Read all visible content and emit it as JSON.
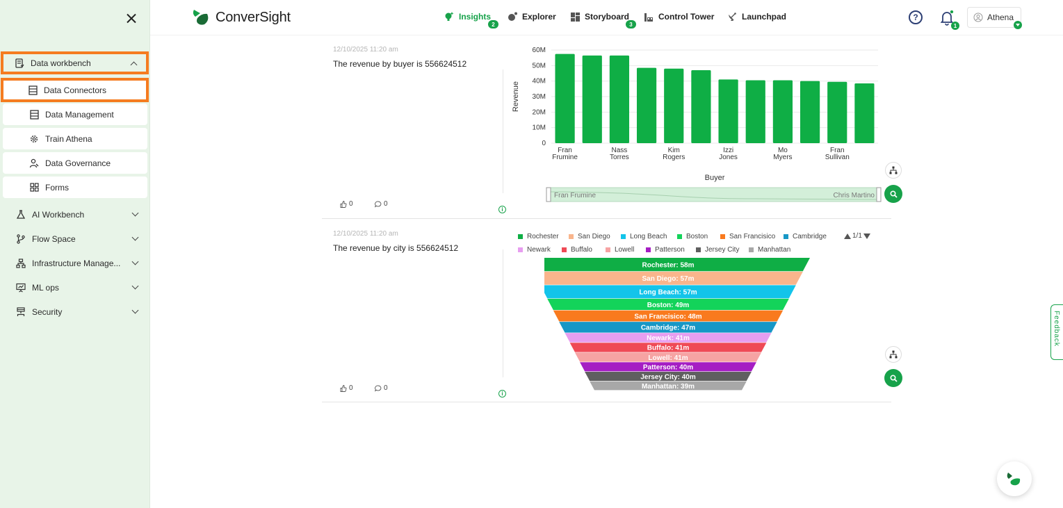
{
  "brand": {
    "name": "ConverSight"
  },
  "sidebar": {
    "groups": [
      {
        "label": "Data workbench",
        "expanded": true
      },
      {
        "label": "AI Workbench"
      },
      {
        "label": "Flow Space"
      },
      {
        "label": "Infrastructure Manage..."
      },
      {
        "label": "ML ops"
      },
      {
        "label": "Security"
      }
    ],
    "data_workbench_items": [
      {
        "label": "Data Connectors"
      },
      {
        "label": "Data Management"
      },
      {
        "label": "Train Athena"
      },
      {
        "label": "Data Governance"
      },
      {
        "label": "Forms"
      }
    ]
  },
  "topnav": {
    "items": [
      {
        "label": "Insights",
        "badge": "2"
      },
      {
        "label": "Explorer"
      },
      {
        "label": "Storyboard",
        "badge": "3"
      },
      {
        "label": "Control Tower"
      },
      {
        "label": "Launchpad"
      }
    ],
    "help": "?",
    "notifications_badge": "1",
    "user_name": "Athena"
  },
  "cards": [
    {
      "timestamp": "12/10/2025 11:20 am",
      "title": "The revenue by buyer is 556624512",
      "likes": "0",
      "comments": "0",
      "info": "i"
    },
    {
      "timestamp": "12/10/2025 11:20 am",
      "title": "The revenue by city is 556624512",
      "likes": "0",
      "comments": "0",
      "info": "i"
    }
  ],
  "chart_data": [
    {
      "type": "bar",
      "xlabel": "Buyer",
      "ylabel": "Revenue",
      "ylim": [
        0,
        60000000
      ],
      "y_ticks": [
        "0",
        "10M",
        "20M",
        "30M",
        "40M",
        "50M",
        "60M"
      ],
      "bar_color": "#0fae45",
      "categories": [
        "Fran Frumine",
        "",
        "Nass Torres",
        "",
        "Kim Rogers",
        "",
        "Izzi Jones",
        "",
        "Mo Myers",
        "",
        "Fran Sullivan",
        ""
      ],
      "values": [
        57500000,
        56500000,
        56500000,
        48500000,
        48000000,
        47000000,
        41000000,
        40500000,
        40500000,
        40000000,
        39500000,
        38500000
      ],
      "zoom_start_label": "Fran Frumine",
      "zoom_end_label": "Chris Martino"
    },
    {
      "type": "funnel",
      "legend_page": "1/1",
      "categories": [
        "Rochester",
        "San Diego",
        "Long Beach",
        "Boston",
        "San Francisico",
        "Cambridge",
        "Newark",
        "Buffalo",
        "Lowell",
        "Patterson",
        "Jersey City",
        "Manhattan"
      ],
      "values": [
        58,
        57,
        57,
        49,
        48,
        47,
        41,
        41,
        41,
        40,
        40,
        39
      ],
      "labels": [
        "Rochester: 58m",
        "San Diego: 57m",
        "Long Beach: 57m",
        "Boston: 49m",
        "San Francisico: 48m",
        "Cambridge: 47m",
        "Newark: 41m",
        "Buffalo: 41m",
        "Lowell: 41m",
        "Patterson: 40m",
        "Jersey City: 40m",
        "Manhattan: 39m"
      ],
      "colors": [
        "#0fae45",
        "#f9b58c",
        "#13c4ea",
        "#13d35a",
        "#f97a1e",
        "#1797c6",
        "#e79ef0",
        "#ef4a56",
        "#f6a3a3",
        "#a51ec3",
        "#5f5f5f",
        "#a8a8a8"
      ]
    }
  ]
}
